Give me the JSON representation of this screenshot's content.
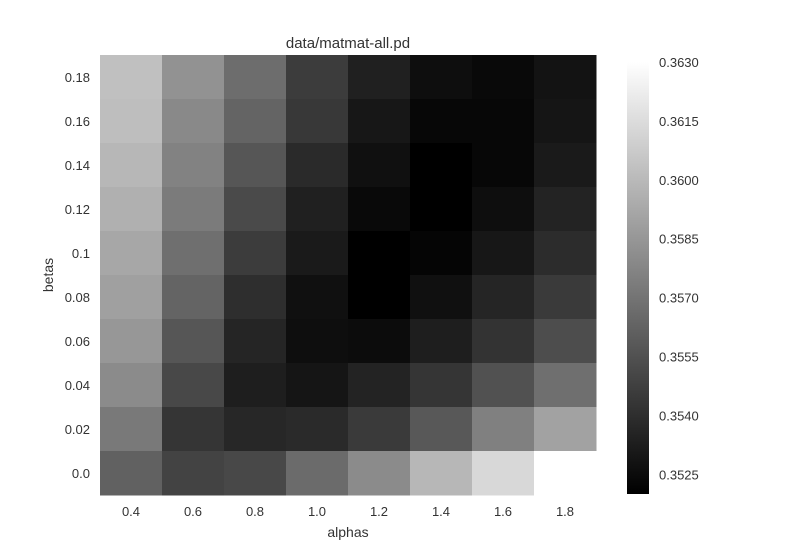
{
  "chart_data": {
    "type": "heatmap",
    "title": "data/matmat-all.pd",
    "xlabel": "alphas",
    "ylabel": "betas",
    "x_categories": [
      "0.4",
      "0.6",
      "0.8",
      "1.0",
      "1.2",
      "1.4",
      "1.6",
      "1.8"
    ],
    "y_categories": [
      "0.18",
      "0.16",
      "0.14",
      "0.12",
      "0.1",
      "0.08",
      "0.06",
      "0.04",
      "0.02",
      "0.0"
    ],
    "values": [
      [
        0.3603,
        0.3583,
        0.3567,
        0.3546,
        0.3534,
        0.3526,
        0.3524,
        0.3528
      ],
      [
        0.3602,
        0.3579,
        0.3563,
        0.3544,
        0.353,
        0.3523,
        0.3523,
        0.3529
      ],
      [
        0.3599,
        0.3576,
        0.3557,
        0.3538,
        0.3527,
        0.352,
        0.3523,
        0.3531
      ],
      [
        0.3596,
        0.3573,
        0.3552,
        0.3534,
        0.3524,
        0.352,
        0.3526,
        0.3535
      ],
      [
        0.3592,
        0.3568,
        0.3546,
        0.3531,
        0.352,
        0.3522,
        0.353,
        0.3539
      ],
      [
        0.3589,
        0.3563,
        0.354,
        0.3527,
        0.352,
        0.3527,
        0.3536,
        0.3545
      ],
      [
        0.3585,
        0.3557,
        0.3536,
        0.3526,
        0.3525,
        0.3533,
        0.3542,
        0.3553
      ],
      [
        0.358,
        0.3551,
        0.3533,
        0.3529,
        0.3535,
        0.3543,
        0.3555,
        0.3568
      ],
      [
        0.3572,
        0.3543,
        0.3537,
        0.3538,
        0.3545,
        0.3558,
        0.3575,
        0.359
      ],
      [
        0.3562,
        0.3549,
        0.3551,
        0.3566,
        0.358,
        0.3599,
        0.3613,
        0.363
      ]
    ],
    "colorbar": {
      "min": 0.352,
      "max": 0.363,
      "ticks": [
        "0.3525",
        "0.3540",
        "0.3555",
        "0.3570",
        "0.3585",
        "0.3600",
        "0.3615",
        "0.3630"
      ],
      "colormap": "greys (black = low, white = high)"
    },
    "grid": false
  }
}
